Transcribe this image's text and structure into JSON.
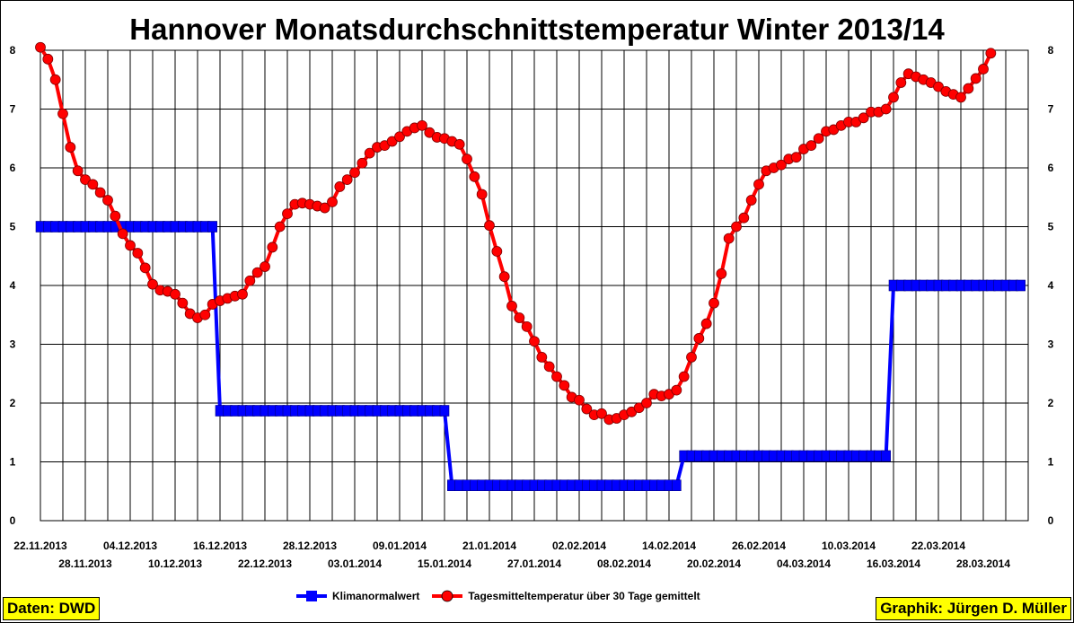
{
  "title": "Hannover Monatsdurchschnittstemperatur Winter 2013/14",
  "source": "Daten: DWD",
  "credit": "Graphik: Jürgen D. Müller",
  "colors": {
    "climate": "#0000ff",
    "daily": "#ff0000",
    "dots": "#ff0000"
  },
  "chart_data": {
    "type": "line",
    "title": "Hannover Monatsdurchschnittstemperatur Winter 2013/14",
    "xlabel": "",
    "ylabel": "",
    "ylim": [
      0,
      8
    ],
    "yticks": [
      0,
      1,
      2,
      3,
      4,
      5,
      6,
      7,
      8
    ],
    "grid": true,
    "legend_position": "bottom",
    "xlim": [
      "22.11.2013",
      "03.04.2014"
    ],
    "x_tick_labels": [
      "22.11.2013",
      "28.11.2013",
      "04.12.2013",
      "10.12.2013",
      "16.12.2013",
      "22.12.2013",
      "28.12.2013",
      "03.01.2014",
      "09.01.2014",
      "15.01.2014",
      "21.01.2014",
      "27.01.2014",
      "02.02.2014",
      "08.02.2014",
      "14.02.2014",
      "20.02.2014",
      "26.02.2014",
      "04.03.2014",
      "10.03.2014",
      "16.03.2014",
      "22.03.2014",
      "28.03.2014"
    ],
    "series": [
      {
        "name": "Klimanormalwert",
        "style": "step",
        "points": [
          [
            "22.11.2013",
            5.0
          ],
          [
            "15.12.2013",
            5.0
          ],
          [
            "16.12.2013",
            1.87
          ],
          [
            "15.01.2014",
            1.87
          ],
          [
            "16.01.2014",
            0.6
          ],
          [
            "15.02.2014",
            0.6
          ],
          [
            "16.02.2014",
            1.1
          ],
          [
            "15.03.2014",
            1.1
          ],
          [
            "16.03.2014",
            4.0
          ],
          [
            "02.04.2014",
            4.0
          ]
        ]
      },
      {
        "name": "Tagesmitteltemperatur über 30 Tage gemittelt",
        "style": "line-markers",
        "start": "22.11.2013",
        "end": "02.04.2014",
        "values": [
          8.05,
          7.85,
          7.5,
          6.92,
          6.35,
          5.95,
          5.8,
          5.72,
          5.58,
          5.45,
          5.18,
          4.88,
          4.68,
          4.55,
          4.3,
          4.02,
          3.92,
          3.9,
          3.85,
          3.7,
          3.52,
          3.45,
          3.5,
          3.68,
          3.74,
          3.78,
          3.82,
          3.85,
          4.08,
          4.22,
          4.32,
          4.65,
          5.0,
          5.22,
          5.38,
          5.4,
          5.38,
          5.35,
          5.32,
          5.42,
          5.68,
          5.8,
          5.92,
          6.08,
          6.25,
          6.35,
          6.38,
          6.45,
          6.53,
          6.62,
          6.68,
          6.72,
          6.6,
          6.52,
          6.5,
          6.45,
          6.4,
          6.15,
          5.85,
          5.55,
          5.02,
          4.58,
          4.15,
          3.65,
          3.45,
          3.3,
          3.05,
          2.78,
          2.62,
          2.45,
          2.3,
          2.1,
          2.05,
          1.9,
          1.8,
          1.82,
          1.72,
          1.74,
          1.8,
          1.85,
          1.92,
          2.0,
          2.15,
          2.12,
          2.15,
          2.22,
          2.45,
          2.78,
          3.1,
          3.35,
          3.7,
          4.2,
          4.8,
          5.0,
          5.15,
          5.45,
          5.72,
          5.95,
          6.0,
          6.05,
          6.15,
          6.18,
          6.32,
          6.38,
          6.5,
          6.62,
          6.65,
          6.72,
          6.78,
          6.78,
          6.85,
          6.95,
          6.95,
          7.0,
          7.2,
          7.45,
          7.6,
          7.55,
          7.5,
          7.45,
          7.38,
          7.3,
          7.25,
          7.2,
          7.35,
          7.52,
          7.68,
          7.95
        ]
      }
    ]
  }
}
